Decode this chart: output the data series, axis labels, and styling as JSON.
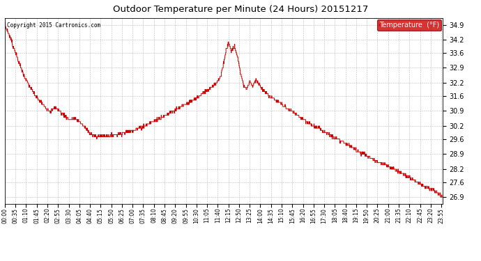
{
  "title": "Outdoor Temperature per Minute (24 Hours) 20151217",
  "copyright_text": "Copyright 2015 Cartronics.com",
  "legend_label": "Temperature  (°F)",
  "legend_bg": "#cc0000",
  "legend_text_color": "#ffffff",
  "line_color": "#cc0000",
  "background_color": "#ffffff",
  "grid_color": "#aaaaaa",
  "ylim": [
    26.6,
    35.2
  ],
  "yticks": [
    26.9,
    27.6,
    28.2,
    28.9,
    29.6,
    30.2,
    30.9,
    31.6,
    32.2,
    32.9,
    33.6,
    34.2,
    34.9
  ],
  "xtick_labels": [
    "00:00",
    "00:35",
    "01:10",
    "01:45",
    "02:20",
    "02:55",
    "03:30",
    "04:05",
    "04:40",
    "05:15",
    "05:50",
    "06:25",
    "07:00",
    "07:35",
    "08:10",
    "08:45",
    "09:20",
    "09:55",
    "10:30",
    "11:05",
    "11:40",
    "12:15",
    "12:50",
    "13:25",
    "14:00",
    "14:35",
    "15:10",
    "15:45",
    "16:20",
    "16:55",
    "17:30",
    "18:05",
    "18:40",
    "19:15",
    "19:50",
    "20:25",
    "21:00",
    "21:35",
    "22:10",
    "22:45",
    "23:20",
    "23:55"
  ],
  "total_minutes": 1440,
  "tick_interval_minutes": 35,
  "t_pts": [
    0,
    15,
    30,
    50,
    70,
    100,
    130,
    150,
    165,
    175,
    190,
    210,
    230,
    250,
    265,
    280,
    300,
    340,
    380,
    420,
    460,
    500,
    540,
    580,
    620,
    660,
    695,
    710,
    720,
    728,
    735,
    745,
    755,
    760,
    768,
    775,
    785,
    795,
    805,
    815,
    825,
    835,
    845,
    860,
    880,
    910,
    950,
    990,
    1030,
    1080,
    1130,
    1180,
    1230,
    1280,
    1330,
    1380,
    1410,
    1439
  ],
  "v_pts": [
    34.9,
    34.4,
    33.8,
    33.0,
    32.3,
    31.6,
    31.1,
    30.9,
    31.05,
    30.95,
    30.75,
    30.5,
    30.55,
    30.35,
    30.1,
    29.85,
    29.7,
    29.75,
    29.85,
    30.0,
    30.2,
    30.5,
    30.8,
    31.1,
    31.4,
    31.8,
    32.2,
    32.5,
    33.2,
    33.8,
    34.05,
    33.7,
    33.9,
    33.6,
    33.2,
    32.6,
    32.1,
    31.9,
    32.3,
    32.0,
    32.4,
    32.15,
    31.9,
    31.7,
    31.5,
    31.2,
    30.8,
    30.4,
    30.1,
    29.7,
    29.3,
    28.9,
    28.5,
    28.2,
    27.8,
    27.4,
    27.2,
    26.9
  ],
  "noise_std": 0.04,
  "noise_seed": 7
}
